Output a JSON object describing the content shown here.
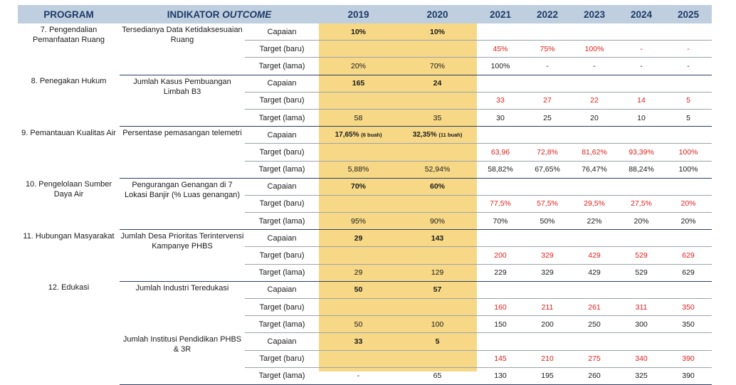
{
  "headers": {
    "program": "PROGRAM",
    "indikator": "INDIKATOR",
    "outcome": "OUTCOME",
    "years": [
      "2019",
      "2020",
      "2021",
      "2022",
      "2023",
      "2024",
      "2025"
    ]
  },
  "colors": {
    "header_bg": "#bfcfdf",
    "header_text": "#1f3a68",
    "highlight_years": "#f6d886",
    "new_target": "#e0201c"
  },
  "groups": [
    {
      "program": "7. Pengendalian Pemanfaatan Ruang",
      "indicators": [
        {
          "name": "Tersedianya Data Ketidaksesuaian Ruang",
          "rows": [
            {
              "type": "Capaian",
              "v2019": "10%",
              "v2020": "10%",
              "later": [
                "",
                "",
                "",
                "",
                ""
              ]
            },
            {
              "type": "Target (baru)",
              "v2019": "",
              "v2020": "",
              "later": [
                "45%",
                "75%",
                "100%",
                "-",
                "-"
              ]
            },
            {
              "type": "Target (lama)",
              "v2019": "20%",
              "v2020": "70%",
              "later": [
                "100%",
                "-",
                "-",
                "-",
                "-"
              ]
            }
          ]
        }
      ]
    },
    {
      "program": "8. Penegakan Hukum",
      "indicators": [
        {
          "name": "Jumlah Kasus Pembuangan Limbah B3",
          "rows": [
            {
              "type": "Capaian",
              "v2019": "165",
              "v2020": "24",
              "later": [
                "",
                "",
                "",
                "",
                ""
              ]
            },
            {
              "type": "Target (baru)",
              "v2019": "",
              "v2020": "",
              "later": [
                "33",
                "27",
                "22",
                "14",
                "5"
              ]
            },
            {
              "type": "Target (lama)",
              "v2019": "58",
              "v2020": "35",
              "later": [
                "30",
                "25",
                "20",
                "10",
                "5"
              ]
            }
          ]
        }
      ]
    },
    {
      "program": "9. Pemantauan Kualitas Air",
      "indicators": [
        {
          "name": "Persentase pemasangan telemetri",
          "rows": [
            {
              "type": "Capaian",
              "v2019": "17,65%",
              "v2019_note": "(6 buah)",
              "v2020": "32,35%",
              "v2020_note": "(11 buah)",
              "later": [
                "",
                "",
                "",
                "",
                ""
              ]
            },
            {
              "type": "Target (baru)",
              "v2019": "",
              "v2020": "",
              "later": [
                "63,96",
                "72,8%",
                "81,62%",
                "93,39%",
                "100%"
              ]
            },
            {
              "type": "Target (lama)",
              "v2019": "5,88%",
              "v2020": "52,94%",
              "later": [
                "58,82%",
                "67,65%",
                "76,47%",
                "88,24%",
                "100%"
              ]
            }
          ]
        }
      ]
    },
    {
      "program": "10. Pengelolaan Sumber Daya Air",
      "indicators": [
        {
          "name": "Pengurangan Genangan di 7 Lokasi Banjir (% Luas genangan)",
          "rows": [
            {
              "type": "Capaian",
              "v2019": "70%",
              "v2020": "60%",
              "later": [
                "",
                "",
                "",
                "",
                ""
              ]
            },
            {
              "type": "Target (baru)",
              "v2019": "",
              "v2020": "",
              "later": [
                "77,5%",
                "57,5%",
                "29,5%",
                "27,5%",
                "20%"
              ]
            },
            {
              "type": "Target (lama)",
              "v2019": "95%",
              "v2020": "90%",
              "later": [
                "70%",
                "50%",
                "22%",
                "20%",
                "20%"
              ]
            }
          ]
        }
      ]
    },
    {
      "program": "11. Hubungan Masyarakat",
      "indicators": [
        {
          "name": "Jumlah Desa Prioritas Terintervensi Kampanye PHBS",
          "rows": [
            {
              "type": "Capaian",
              "v2019": "29",
              "v2020": "143",
              "later": [
                "",
                "",
                "",
                "",
                ""
              ]
            },
            {
              "type": "Target (baru)",
              "v2019": "",
              "v2020": "",
              "later": [
                "200",
                "329",
                "429",
                "529",
                "629"
              ]
            },
            {
              "type": "Target (lama)",
              "v2019": "29",
              "v2020": "129",
              "later": [
                "229",
                "329",
                "429",
                "529",
                "629"
              ]
            }
          ]
        }
      ]
    },
    {
      "program": "12. Edukasi",
      "indicators": [
        {
          "name": "Jumlah Industri Teredukasi",
          "rows": [
            {
              "type": "Capaian",
              "v2019": "50",
              "v2020": "57",
              "later": [
                "",
                "",
                "",
                "",
                ""
              ]
            },
            {
              "type": "Target (baru)",
              "v2019": "",
              "v2020": "",
              "later": [
                "160",
                "211",
                "261",
                "311",
                "350"
              ]
            },
            {
              "type": "Target (lama)",
              "v2019": "50",
              "v2020": "100",
              "later": [
                "150",
                "200",
                "250",
                "300",
                "350"
              ]
            }
          ]
        },
        {
          "name": "Jumlah Institusi Pendidikan PHBS & 3R",
          "rows": [
            {
              "type": "Capaian",
              "v2019": "33",
              "v2020": "5",
              "later": [
                "",
                "",
                "",
                "",
                ""
              ]
            },
            {
              "type": "Target (baru)",
              "v2019": "",
              "v2020": "",
              "later": [
                "145",
                "210",
                "275",
                "340",
                "390"
              ]
            },
            {
              "type": "Target (lama)",
              "v2019": "-",
              "v2020": "65",
              "later": [
                "130",
                "195",
                "260",
                "325",
                "390"
              ]
            }
          ]
        }
      ]
    }
  ]
}
